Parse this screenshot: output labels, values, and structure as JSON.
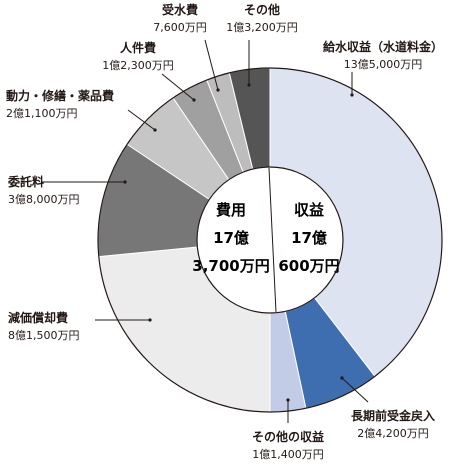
{
  "chart_data": {
    "type": "pie",
    "title": "",
    "center": {
      "left": [
        "費用",
        "17億",
        "3,700万円"
      ],
      "right": [
        "収益",
        "17億",
        "600万円"
      ]
    },
    "series": [
      {
        "name": "収益",
        "slices": [
          {
            "label": "給水収益（水道料金）",
            "value_text": "13億5,000万円",
            "value": 135000,
            "color": "#dde3f1"
          },
          {
            "label": "長期前受金戻入",
            "value_text": "2億4,200万円",
            "value": 24200,
            "color": "#3f6eb0"
          },
          {
            "label": "その他の収益",
            "value_text": "1億1,400万円",
            "value": 11400,
            "color": "#c3cce6"
          }
        ]
      },
      {
        "name": "費用",
        "slices": [
          {
            "label": "減価償却費",
            "value_text": "8億1,500万円",
            "value": 81500,
            "color": "#ececec"
          },
          {
            "label": "委託料",
            "value_text": "3億8,000万円",
            "value": 38000,
            "color": "#777777"
          },
          {
            "label": "動力・修繕・薬品費",
            "value_text": "2億1,100万円",
            "value": 21100,
            "color": "#c6c6c6"
          },
          {
            "label": "人件費",
            "value_text": "1億2,300万円",
            "value": 12300,
            "color": "#a0a0a0"
          },
          {
            "label": "受水費",
            "value_text": "7,600万円",
            "value": 7600,
            "color": "#bdbdbd"
          },
          {
            "label": "その他",
            "value_text": "1億3,200万円",
            "value": 13200,
            "color": "#555555"
          }
        ]
      }
    ]
  }
}
